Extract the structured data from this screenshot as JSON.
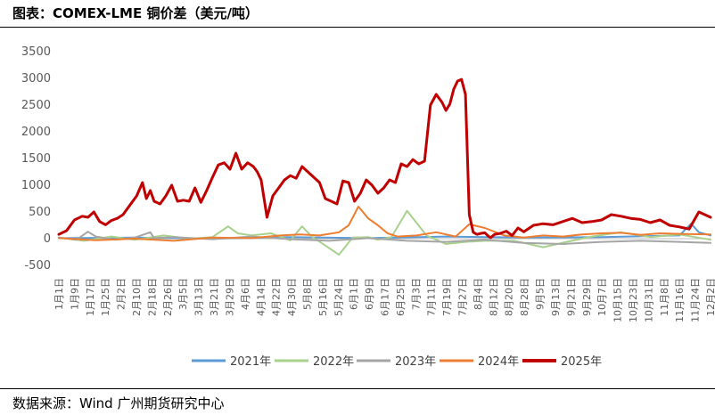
{
  "title": "图表：COMEX-LME 铜价差（美元/吨）",
  "source": "数据来源：Wind 广州期货研究中心",
  "chart_data": {
    "type": "line",
    "title": "COMEX-LME 铜价差（美元/吨）",
    "ylim": [
      -500,
      3500
    ],
    "yticks": [
      -500,
      0,
      500,
      1000,
      1500,
      2000,
      2500,
      3000,
      3500
    ],
    "grid": false,
    "legend_position": "bottom",
    "x_tick_labels": [
      "1月1日",
      "1月9日",
      "1月17日",
      "1月25日",
      "2月2日",
      "2月10日",
      "2月18日",
      "2月26日",
      "3月5日",
      "3月13日",
      "3月21日",
      "3月29日",
      "4月6日",
      "4月14日",
      "4月22日",
      "4月30日",
      "5月8日",
      "5月16日",
      "5月24日",
      "6月1日",
      "6月9日",
      "6月17日",
      "6月25日",
      "7月3日",
      "7月11日",
      "7月19日",
      "7月27日",
      "8月4日",
      "8月12日",
      "8月20日",
      "8月28日",
      "9月5日",
      "9月13日",
      "9月21日",
      "9月29日",
      "10月7日",
      "10月15日",
      "10月23日",
      "10月31日",
      "11月8日",
      "11月16日",
      "11月24日",
      "12月2日"
    ],
    "series": [
      {
        "name": "2021年",
        "color": "#5b9bd5",
        "width": 2,
        "x": [
          1,
          40,
          80,
          120,
          160,
          200,
          240,
          280,
          320,
          326,
          330,
          336
        ],
        "y": [
          10,
          20,
          0,
          30,
          10,
          40,
          20,
          30,
          60,
          280,
          120,
          60
        ]
      },
      {
        "name": "2022年",
        "color": "#a9d18e",
        "width": 2,
        "x": [
          1,
          14,
          28,
          40,
          55,
          68,
          80,
          88,
          93,
          100,
          110,
          120,
          126,
          131,
          136,
          145,
          152,
          160,
          165,
          172,
          180,
          190,
          200,
          210,
          220,
          235,
          250,
          262,
          275,
          290,
          305,
          320,
          336
        ],
        "y": [
          20,
          -40,
          40,
          -20,
          60,
          0,
          30,
          230,
          100,
          60,
          100,
          -30,
          230,
          40,
          -80,
          -300,
          20,
          30,
          -20,
          30,
          520,
          60,
          -100,
          -60,
          -40,
          -40,
          -160,
          -60,
          40,
          120,
          30,
          80,
          -20
        ]
      },
      {
        "name": "2023年",
        "color": "#a5a5a5",
        "width": 2,
        "x": [
          1,
          10,
          16,
          20,
          30,
          40,
          48,
          50,
          60,
          80,
          100,
          120,
          140,
          160,
          180,
          200,
          220,
          240,
          260,
          280,
          300,
          320,
          336
        ],
        "y": [
          20,
          -20,
          130,
          40,
          -20,
          20,
          120,
          10,
          30,
          -10,
          40,
          -10,
          -40,
          10,
          -40,
          -60,
          -20,
          -80,
          -100,
          -60,
          -40,
          -60,
          -80
        ]
      },
      {
        "name": "2024年",
        "color": "#ed7d31",
        "width": 2,
        "x": [
          1,
          20,
          40,
          60,
          80,
          100,
          115,
          125,
          135,
          145,
          150,
          155,
          160,
          165,
          170,
          175,
          185,
          195,
          205,
          212,
          220,
          230,
          240,
          250,
          260,
          270,
          280,
          290,
          300,
          310,
          320,
          336
        ],
        "y": [
          10,
          -30,
          0,
          -40,
          20,
          10,
          60,
          80,
          60,
          120,
          250,
          600,
          380,
          250,
          100,
          40,
          60,
          120,
          40,
          270,
          200,
          60,
          20,
          60,
          40,
          80,
          100,
          110,
          70,
          100,
          90,
          80
        ]
      },
      {
        "name": "2025年",
        "color": "#c00000",
        "width": 3,
        "x": [
          1,
          5,
          9,
          13,
          16,
          19,
          22,
          25,
          28,
          31,
          34,
          38,
          41,
          44,
          46,
          48,
          50,
          53,
          56,
          59,
          62,
          65,
          68,
          71,
          74,
          77,
          80,
          83,
          86,
          89,
          92,
          95,
          98,
          101,
          103,
          105,
          108,
          111,
          114,
          117,
          120,
          123,
          126,
          129,
          132,
          135,
          138,
          141,
          144,
          147,
          150,
          153,
          156,
          159,
          162,
          165,
          168,
          171,
          174,
          177,
          180,
          183,
          186,
          189,
          192,
          195,
          198,
          200,
          202,
          204,
          206,
          208,
          210,
          212,
          214,
          216,
          218,
          220,
          222,
          223,
          225,
          228,
          231,
          234,
          237,
          240,
          245,
          250,
          255,
          260,
          265,
          270,
          275,
          280,
          285,
          290,
          295,
          300,
          305,
          310,
          315,
          320,
          325,
          330,
          333,
          336
        ],
        "y": [
          80,
          150,
          350,
          420,
          400,
          500,
          320,
          260,
          340,
          380,
          450,
          650,
          800,
          1050,
          750,
          900,
          700,
          650,
          800,
          1000,
          700,
          720,
          700,
          950,
          680,
          900,
          1150,
          1380,
          1420,
          1300,
          1600,
          1300,
          1420,
          1350,
          1250,
          1100,
          400,
          800,
          950,
          1100,
          1180,
          1130,
          1350,
          1250,
          1150,
          1050,
          750,
          700,
          650,
          1080,
          1050,
          700,
          850,
          1100,
          1000,
          850,
          950,
          1100,
          1050,
          1400,
          1350,
          1480,
          1400,
          1450,
          2500,
          2700,
          2550,
          2400,
          2520,
          2800,
          2950,
          2980,
          2700,
          450,
          120,
          80,
          100,
          110,
          40,
          20,
          80,
          100,
          140,
          60,
          200,
          130,
          250,
          280,
          260,
          320,
          380,
          300,
          320,
          350,
          450,
          420,
          380,
          360,
          300,
          350,
          250,
          220,
          180,
          500,
          450,
          400
        ]
      }
    ]
  }
}
